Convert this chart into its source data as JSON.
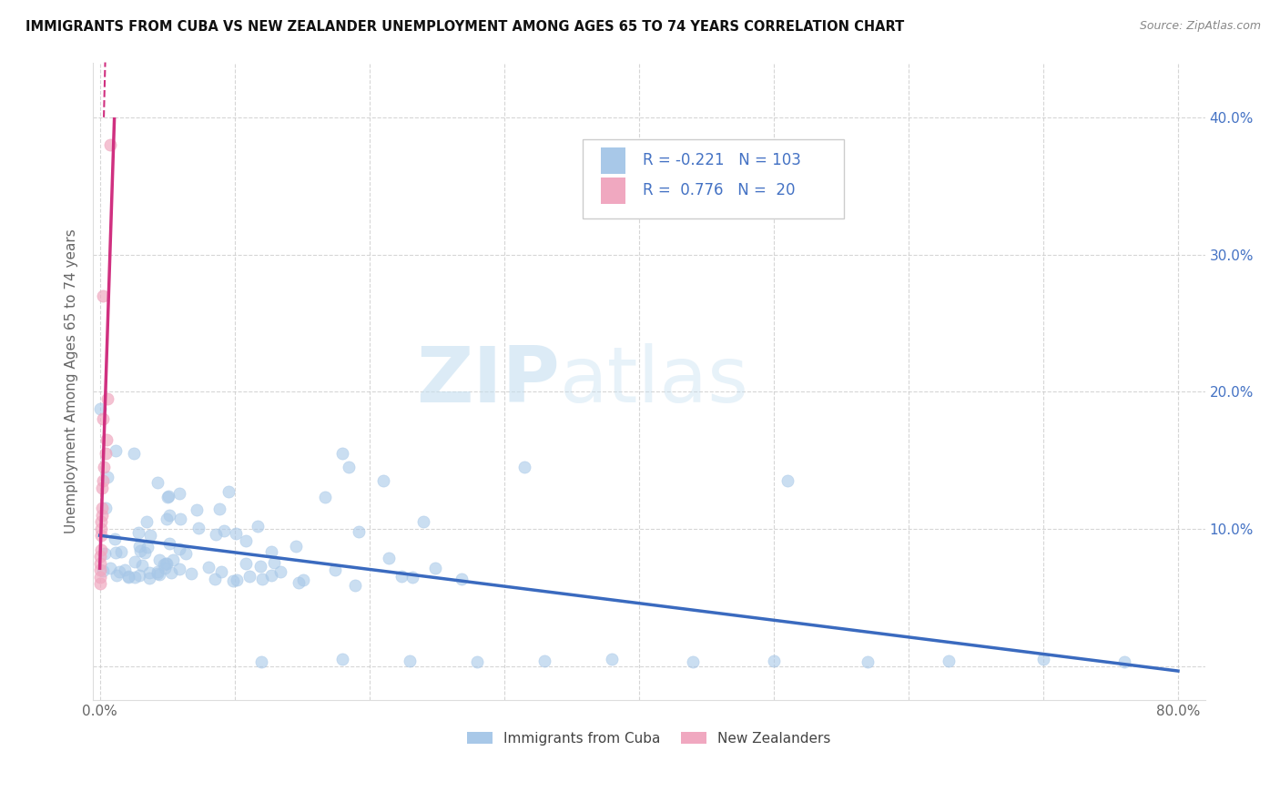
{
  "title": "IMMIGRANTS FROM CUBA VS NEW ZEALANDER UNEMPLOYMENT AMONG AGES 65 TO 74 YEARS CORRELATION CHART",
  "source": "Source: ZipAtlas.com",
  "ylabel": "Unemployment Among Ages 65 to 74 years",
  "R1": -0.221,
  "N1": 103,
  "R2": 0.776,
  "N2": 20,
  "color_cuba": "#a8c8e8",
  "color_nz": "#f0a8c0",
  "color_trendline_cuba": "#3a6abf",
  "color_trendline_nz": "#d03080",
  "color_text": "#4472c4",
  "legend1_label": "Immigrants from Cuba",
  "legend2_label": "New Zealanders",
  "watermark_part1": "ZIP",
  "watermark_part2": "atlas",
  "xlim": [
    -0.005,
    0.82
  ],
  "ylim": [
    -0.025,
    0.44
  ],
  "x_ticks": [
    0.0,
    0.1,
    0.2,
    0.3,
    0.4,
    0.5,
    0.6,
    0.7,
    0.8
  ],
  "x_tick_labels": [
    "0.0%",
    "",
    "",
    "",
    "",
    "",
    "",
    "",
    "80.0%"
  ],
  "y_ticks_right": [
    0.1,
    0.2,
    0.3,
    0.4
  ],
  "y_tick_labels_right": [
    "10.0%",
    "20.0%",
    "30.0%",
    "40.0%"
  ]
}
